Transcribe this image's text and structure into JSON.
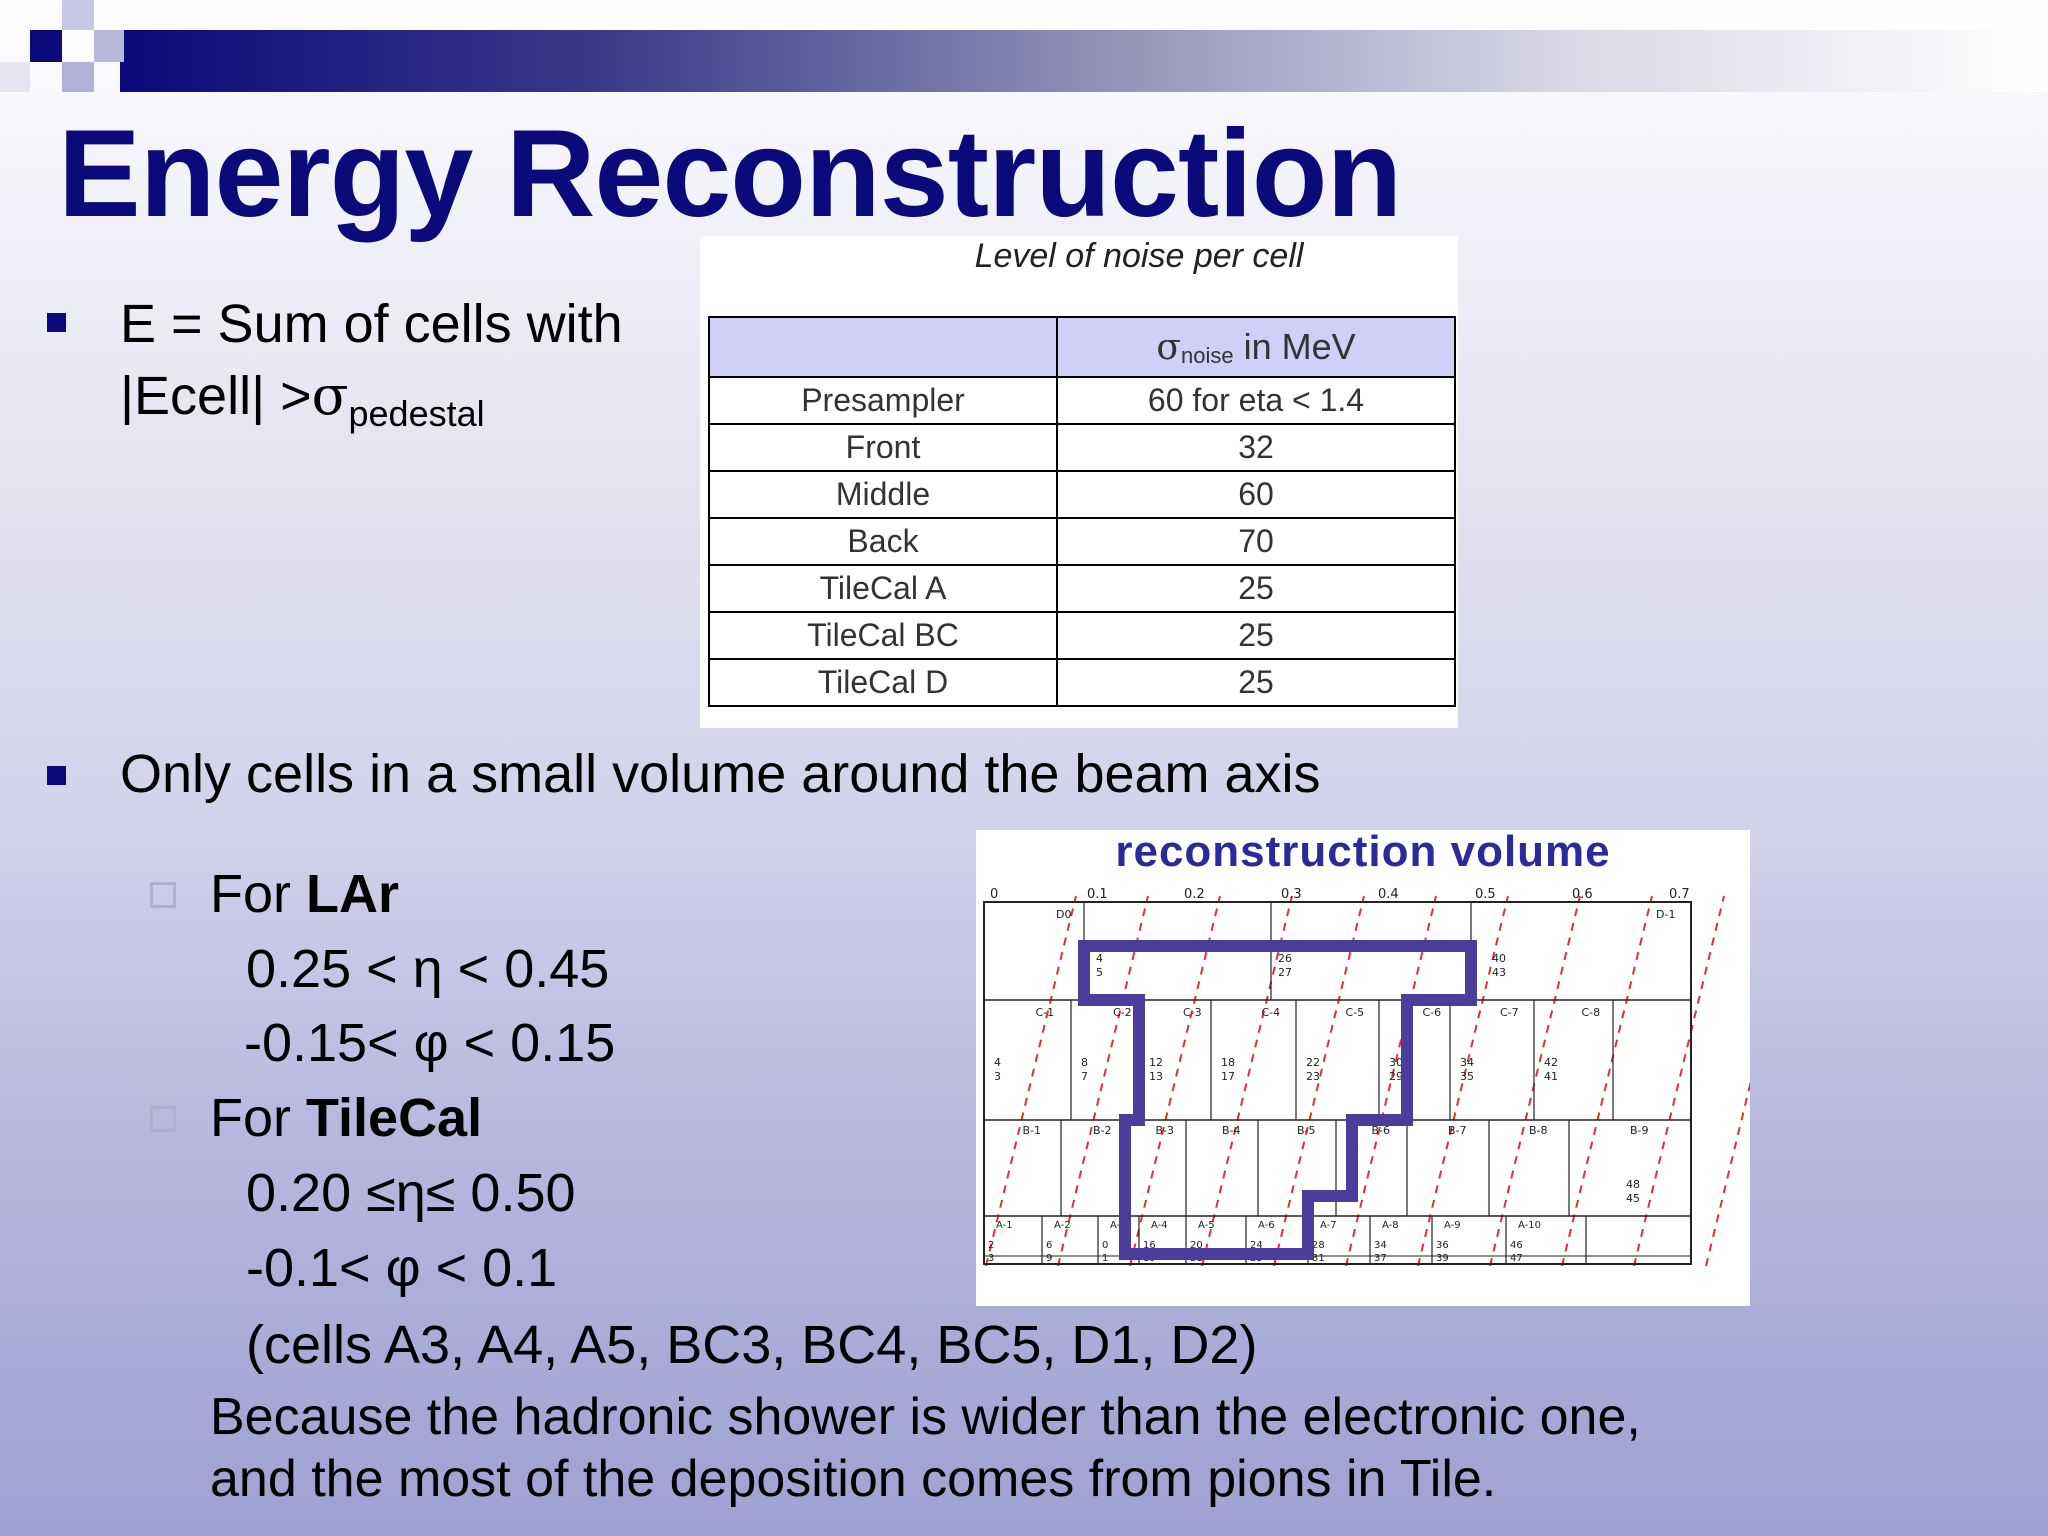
{
  "slide": {
    "title": "Energy Reconstruction",
    "bullet1": {
      "line1": "E = Sum of cells with",
      "line2_prefix": "|Ecell| >",
      "sigma": "σ",
      "sub": "pedestal"
    },
    "bullet2": "Only cells in a small volume around the beam axis",
    "lar": {
      "heading_prefix": "For ",
      "heading_bold": "LAr",
      "eta_range": "0.25 < η < 0.45",
      "phi_range": "-0.15< φ < 0.15"
    },
    "tilecal": {
      "heading_prefix": "For ",
      "heading_bold": "TileCal",
      "eta_range": "0.20 ≤η≤ 0.50",
      "phi_range": "-0.1< φ < 0.1",
      "cells": "(cells A3, A4, A5, BC3, BC4, BC5, D1, D2)"
    },
    "conclusion": {
      "line1": "Because the hadronic shower is wider  than the electronic one,",
      "line2": "and the most of the deposition comes from pions in Tile."
    }
  },
  "noise_table": {
    "caption": "Level of noise per cell",
    "header": {
      "sigma": "σ",
      "sub": "noise",
      "unit": " in MeV"
    },
    "rows": [
      {
        "name": "Presampler",
        "value": "60 for eta < 1.4"
      },
      {
        "name": "Front",
        "value": "32"
      },
      {
        "name": "Middle",
        "value": "60"
      },
      {
        "name": "Back",
        "value": "70"
      },
      {
        "name": "TileCal A",
        "value": "25"
      },
      {
        "name": "TileCal BC",
        "value": "25"
      },
      {
        "name": "TileCal D",
        "value": "25"
      }
    ]
  },
  "diagram": {
    "title": "reconstruction volume",
    "eta_ticks": [
      "0",
      "0.1",
      "0.2",
      "0.3",
      "0.4",
      "0.5",
      "0.6",
      "0.7"
    ],
    "d_labels": [
      "D0",
      "D-1"
    ],
    "d_numbers": [
      "4\n5",
      "26\n27",
      "40\n43"
    ],
    "c_labels": [
      "C-1",
      "C-2",
      "C-3",
      "C-4",
      "C-5",
      "C-6",
      "C-7",
      "C-8"
    ],
    "c_numbers": [
      "4\n3",
      "8\n7",
      "12\n13",
      "18\n17",
      "22\n23",
      "30\n29",
      "34\n35",
      "42\n41"
    ],
    "b_labels": [
      "B-1",
      "B-2",
      "B-3",
      "B-4",
      "B-5",
      "B-6",
      "B-7",
      "B-8",
      "B-9"
    ],
    "b_numbers": [
      "48\n45"
    ],
    "a_labels": [
      "A-1",
      "A-2",
      "A-3",
      "A-4",
      "A-5",
      "A-6",
      "A-7",
      "A-8",
      "A-9",
      "A-10"
    ],
    "a_numbers": [
      "2\n3",
      "6\n9",
      "0\n1",
      "16\n19",
      "20\n21",
      "24\n25",
      "28\n31",
      "34\n37",
      "36\n39",
      "46\n47"
    ],
    "colors": {
      "outline": "#4a3d9c",
      "dashed": "#e03030",
      "grid": "#222222",
      "title": "#2a2a9a"
    }
  },
  "colors": {
    "title": "#0a0a7a",
    "bullet": "#0a0a7a",
    "table_header": "#cfcff8"
  }
}
